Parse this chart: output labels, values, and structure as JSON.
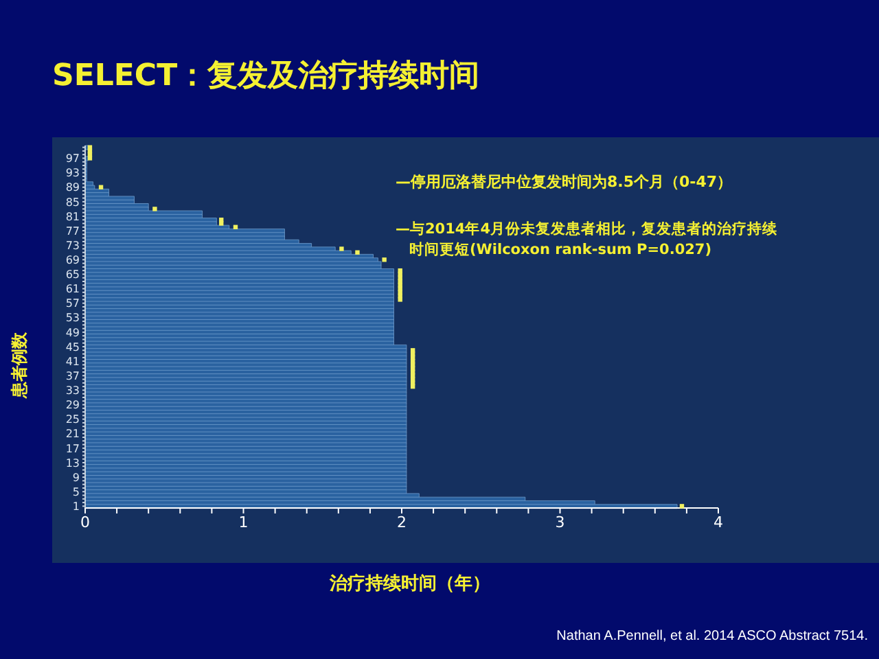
{
  "chart_data": {
    "type": "bar",
    "orientation": "horizontal",
    "title": "SELECT：复发及治疗持续时间",
    "xlabel": "治疗持续时间（年）",
    "ylabel": "患者例数",
    "annotations": [
      "—停用厄洛替尼中位复发时间为8.5个月（0-47）",
      "—与2014年4月份未复发患者相比，复发患者的治疗持续时间更短(Wilcoxon rank-sum P=0.027)",
      "Nathan A.Pennell, et al. 2014 ASCO Abstract 7514."
    ],
    "categories": [
      null,
      null,
      null,
      "97",
      null,
      null,
      null,
      "93",
      null,
      null,
      null,
      "89",
      null,
      null,
      null,
      "85",
      null,
      null,
      null,
      "81",
      null,
      null,
      null,
      "77",
      null,
      null,
      null,
      "73",
      null,
      null,
      null,
      "69",
      null,
      null,
      null,
      "65",
      null,
      null,
      null,
      "61",
      null,
      null,
      null,
      "57",
      null,
      null,
      null,
      "53",
      null,
      null,
      null,
      "49",
      null,
      null,
      null,
      "45",
      null,
      null,
      null,
      "41",
      null,
      null,
      null,
      "37",
      null,
      null,
      null,
      "33",
      null,
      null,
      null,
      "29",
      null,
      null,
      null,
      "25",
      null,
      null,
      null,
      "21",
      null,
      null,
      null,
      "17",
      null,
      null,
      null,
      "13",
      null,
      null,
      null,
      "9",
      null,
      null,
      null,
      "5",
      null,
      null,
      null,
      "1"
    ],
    "xlim": [
      0,
      4
    ],
    "xticks": [
      0,
      {
        "value": 0.2,
        "label": null
      },
      {
        "value": 0.4,
        "label": null
      },
      {
        "value": 0.6,
        "label": null
      },
      {
        "value": 0.8,
        "label": null
      },
      1,
      {
        "value": 1.2,
        "label": null
      },
      {
        "value": 1.4,
        "label": null
      },
      {
        "value": 1.6,
        "label": null
      },
      {
        "value": 1.8,
        "label": null
      },
      2,
      {
        "value": 2.2,
        "label": null
      },
      {
        "value": 2.4,
        "label": null
      },
      {
        "value": 2.6,
        "label": null
      },
      {
        "value": 2.8,
        "label": null
      },
      3,
      {
        "value": 3.2,
        "label": null
      },
      {
        "value": 3.4,
        "label": null
      },
      {
        "value": 3.6,
        "label": null
      },
      {
        "value": 3.8,
        "label": null
      },
      4
    ],
    "marker": "square",
    "series": [
      {
        "color": "#2a62a0",
        "values": [
          0.02,
          null,
          null,
          0.02,
          0.01,
          0.01,
          0.01,
          0.01,
          0.01,
          0.01,
          0.05,
          0.06,
          0.15,
          0.15,
          0.31,
          0.31,
          0.4,
          0.4,
          0.74,
          0.74,
          0.83,
          0.83,
          0.91,
          1.26,
          1.26,
          1.26,
          1.35,
          1.43,
          1.58,
          1.68,
          1.82,
          1.85,
          1.87,
          1.87,
          1.95,
          1.95,
          1.95,
          1.95,
          1.95,
          1.95,
          1.95,
          1.95,
          1.95,
          1.95,
          1.95,
          1.95,
          1.95,
          1.95,
          1.95,
          1.95,
          1.95,
          1.95,
          1.95,
          1.95,
          1.95,
          2.03,
          2.03,
          2.03,
          2.03,
          2.03,
          2.03,
          2.03,
          2.03,
          2.03,
          2.03,
          2.03,
          2.03,
          2.03,
          2.03,
          2.03,
          2.03,
          2.03,
          2.03,
          2.03,
          2.03,
          2.03,
          2.03,
          2.03,
          2.03,
          2.03,
          2.03,
          2.03,
          2.03,
          2.03,
          2.03,
          2.03,
          2.03,
          2.03,
          2.03,
          2.03,
          2.03,
          2.03,
          2.03,
          2.03,
          2.03,
          2.03,
          2.11,
          2.78,
          3.22,
          3.74
        ]
      },
      {
        "type": "scatter",
        "color": "#f0f060",
        "values": [
          0.03,
          0.03,
          0.03,
          0.03,
          null,
          null,
          null,
          null,
          null,
          null,
          null,
          0.1,
          null,
          null,
          null,
          null,
          null,
          0.44,
          null,
          null,
          0.86,
          0.86,
          0.95,
          null,
          null,
          null,
          null,
          null,
          1.62,
          1.72,
          null,
          1.89,
          null,
          null,
          1.99,
          1.99,
          1.99,
          1.99,
          1.99,
          1.99,
          1.99,
          1.99,
          1.99,
          null,
          null,
          null,
          null,
          null,
          null,
          null,
          null,
          null,
          null,
          null,
          null,
          null,
          2.07,
          2.07,
          2.07,
          2.07,
          2.07,
          2.07,
          2.07,
          2.07,
          2.07,
          2.07,
          2.07,
          null,
          null,
          null,
          null,
          null,
          null,
          null,
          null,
          null,
          null,
          null,
          null,
          null,
          null,
          null,
          null,
          null,
          null,
          null,
          null,
          null,
          null,
          null,
          null,
          null,
          null,
          null,
          null,
          null,
          null,
          null,
          null,
          3.77
        ]
      }
    ]
  }
}
